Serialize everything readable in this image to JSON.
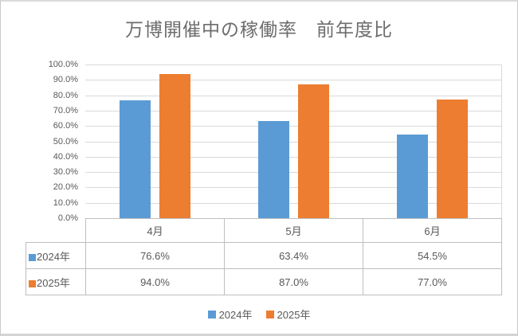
{
  "chart_data": {
    "type": "bar",
    "title": "万博開催中の稼働率　前年度比",
    "categories": [
      "4月",
      "5月",
      "6月"
    ],
    "series": [
      {
        "name": "2024年",
        "color": "#5B9BD5",
        "values": [
          76.6,
          63.4,
          54.5
        ]
      },
      {
        "name": "2025年",
        "color": "#ED7D31",
        "values": [
          94.0,
          87.0,
          77.0
        ]
      }
    ],
    "ylabel": "",
    "xlabel": "",
    "ylim": [
      0,
      100
    ],
    "ytick_step": 10,
    "ytick_labels_top_to_bottom": [
      "100.0%",
      "90.0%",
      "80.0%",
      "70.0%",
      "60.0%",
      "50.0%",
      "40.0%",
      "30.0%",
      "20.0%",
      "10.0%",
      "0.0%"
    ],
    "grid": true,
    "gridline_color": "#d9d9d9",
    "legend_position": "bottom",
    "has_data_table": true
  },
  "table": {
    "columns": [
      "4月",
      "5月",
      "6月"
    ],
    "rows": [
      {
        "label": "2024年",
        "key_color": "#5B9BD5",
        "cells": [
          "76.6%",
          "63.4%",
          "54.5%"
        ]
      },
      {
        "label": "2025年",
        "key_color": "#ED7D31",
        "cells": [
          "94.0%",
          "87.0%",
          "77.0%"
        ]
      }
    ],
    "border_color": "#bfbfbf"
  },
  "legend": {
    "items": [
      {
        "label": "2024年",
        "color": "#5B9BD5"
      },
      {
        "label": "2025年",
        "color": "#ED7D31"
      }
    ]
  }
}
